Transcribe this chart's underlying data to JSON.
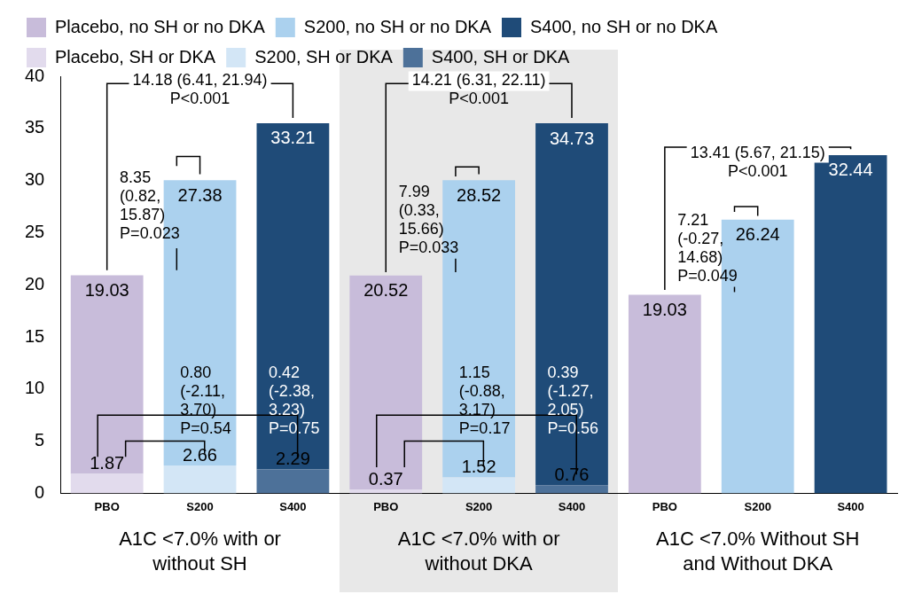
{
  "chart_data": {
    "type": "bar",
    "stacked": true,
    "categories": [
      "PBO",
      "S200",
      "S400",
      "PBO",
      "S200",
      "S400",
      "PBO",
      "S200",
      "S400"
    ],
    "series": [
      {
        "name": "Placebo, SH or DKA",
        "color": "#e2dbed",
        "values": [
          1.87,
          null,
          null,
          0.37,
          null,
          null,
          null,
          null,
          null
        ]
      },
      {
        "name": "S200, SH or DKA",
        "color": "#d3e6f6",
        "values": [
          null,
          2.66,
          null,
          null,
          1.52,
          null,
          null,
          null,
          null
        ]
      },
      {
        "name": "S400, SH or DKA",
        "color": "#4d7199",
        "values": [
          null,
          null,
          2.29,
          null,
          null,
          0.76,
          null,
          null,
          null
        ]
      },
      {
        "name": "Placebo, no SH or no DKA",
        "color": "#c8bcda",
        "values": [
          19.03,
          null,
          null,
          20.52,
          null,
          null,
          19.03,
          null,
          null
        ]
      },
      {
        "name": "S200, no SH or no DKA",
        "color": "#abd1ee",
        "values": [
          null,
          27.38,
          null,
          null,
          28.52,
          null,
          null,
          26.24,
          null
        ]
      },
      {
        "name": "S400, no SH or no DKA",
        "color": "#1f4b78",
        "values": [
          null,
          null,
          33.21,
          null,
          null,
          34.73,
          null,
          null,
          32.44
        ]
      }
    ],
    "ylim": [
      0,
      40
    ],
    "yticks": [
      0,
      5,
      10,
      15,
      20,
      25,
      30,
      35,
      40
    ],
    "grid": false,
    "legend": "top",
    "data_labels": true,
    "annotations": [
      "14.18 (6.41, 21.94)\nP<0.001",
      "8.35\n(0.82,\n15.87)\nP=0.023",
      "14.21 (6.31, 22.11)\nP<0.001",
      "7.99\n(0.33,\n15.66)\nP=0.033",
      "13.41 (5.67, 21.15)\nP<0.001",
      "7.21\n(-0.27,\n14.68)\nP=0.049",
      "0.80\n(-2.11,\n3.70)\nP=0.54",
      "0.42\n(-2.38,\n3.23)\nP=0.75",
      "1.15\n(-0.88,\n3.17)\nP=0.17",
      "0.39\n(-1.27,\n2.05)\nP=0.56",
      "A1C <7.0% with or\nwithout SH",
      "A1C <7.0% with or\nwithout DKA",
      "A1C <7.0% Without SH\nand Without DKA"
    ]
  }
}
